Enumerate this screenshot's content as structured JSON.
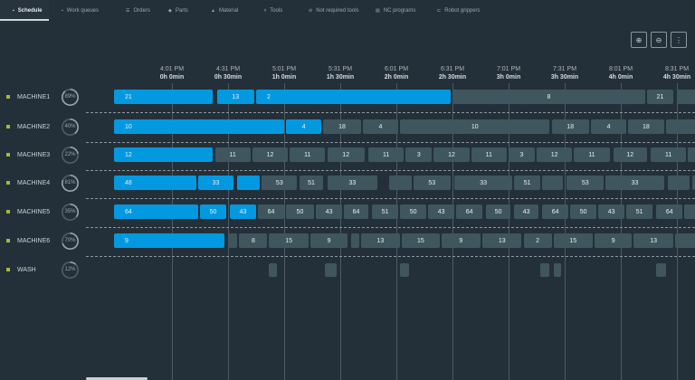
{
  "tabs": [
    {
      "label": "Schedule",
      "icon": "calendar-icon",
      "active": true
    },
    {
      "label": "Work queues",
      "icon": "queue-icon"
    },
    {
      "label": "Orders",
      "icon": "list-icon"
    },
    {
      "label": "Parts",
      "icon": "part-icon"
    },
    {
      "label": "Material",
      "icon": "material-icon"
    },
    {
      "label": "Tools",
      "icon": "tool-icon"
    },
    {
      "label": "Not required tools",
      "icon": "tool-off-icon"
    },
    {
      "label": "NC programs",
      "icon": "program-icon"
    },
    {
      "label": "Robot grippers",
      "icon": "gripper-icon"
    }
  ],
  "toolbar": {
    "zoom_in": "zoom-in-icon",
    "zoom_out": "zoom-out-icon",
    "more": "more-icon"
  },
  "colors": {
    "background": "#243039",
    "active_bar": "#0399e1",
    "queued_bar": "#40565e",
    "machine_dot": "#a8b83a"
  },
  "axis": {
    "ticks": [
      {
        "clock": "4:01 PM",
        "offset": "0h 0min",
        "min": 0
      },
      {
        "clock": "4:31 PM",
        "offset": "0h 30min",
        "min": 30
      },
      {
        "clock": "5:01 PM",
        "offset": "1h 0min",
        "min": 60
      },
      {
        "clock": "5:31 PM",
        "offset": "1h 30min",
        "min": 90
      },
      {
        "clock": "6:01 PM",
        "offset": "2h 0min",
        "min": 120
      },
      {
        "clock": "6:31 PM",
        "offset": "2h 30min",
        "min": 150
      },
      {
        "clock": "7:01 PM",
        "offset": "3h 0min",
        "min": 180
      },
      {
        "clock": "7:31 PM",
        "offset": "3h 30min",
        "min": 210
      },
      {
        "clock": "8:01 PM",
        "offset": "4h 0min",
        "min": 240
      },
      {
        "clock": "8:31 PM",
        "offset": "4h 30min",
        "min": 270
      }
    ]
  },
  "machines": [
    {
      "name": "MACHINE1",
      "utilization": "89%",
      "util": 89,
      "jobs": [
        [
          -31,
          22,
          "21",
          1
        ],
        [
          24,
          44,
          "13",
          1
        ],
        [
          45,
          149,
          "2",
          1
        ],
        [
          150,
          253,
          "8",
          0
        ],
        [
          254,
          268,
          "21",
          0
        ],
        [
          270,
          300,
          "",
          0
        ]
      ]
    },
    {
      "name": "MACHINE2",
      "utilization": "40%",
      "util": 40,
      "jobs": [
        [
          -31,
          60,
          "10",
          1
        ],
        [
          61,
          80,
          "4",
          1
        ],
        [
          81,
          101,
          "18",
          0
        ],
        [
          102,
          121,
          "4",
          0
        ],
        [
          122,
          202,
          "10",
          0
        ],
        [
          203,
          223,
          "18",
          0
        ],
        [
          224,
          243,
          "4",
          0
        ],
        [
          244,
          263,
          "18",
          0
        ],
        [
          264,
          300,
          "",
          0
        ]
      ]
    },
    {
      "name": "MACHINE3",
      "utilization": "22%",
      "util": 22,
      "jobs": [
        [
          -31,
          22,
          "12",
          1
        ],
        [
          23,
          42,
          "11",
          0
        ],
        [
          43,
          62,
          "12",
          0
        ],
        [
          63,
          82,
          "11",
          0
        ],
        [
          83,
          103,
          "12",
          0
        ],
        [
          105,
          124,
          "11",
          0
        ],
        [
          125,
          139,
          "3",
          0
        ],
        [
          140,
          159,
          "12",
          0
        ],
        [
          160,
          179,
          "11",
          0
        ],
        [
          180,
          194,
          "3",
          0
        ],
        [
          195,
          214,
          "12",
          0
        ],
        [
          215,
          234,
          "11",
          0
        ],
        [
          236,
          254,
          "12",
          0
        ],
        [
          256,
          275,
          "11",
          0
        ],
        [
          276,
          300,
          "",
          0
        ]
      ]
    },
    {
      "name": "MACHINE4",
      "utilization": "81%",
      "util": 81,
      "jobs": [
        [
          -31,
          13,
          "48",
          1
        ],
        [
          14,
          33,
          "33",
          1
        ],
        [
          35,
          47,
          "",
          1
        ],
        [
          48,
          67,
          "53",
          0
        ],
        [
          68,
          81,
          "51",
          0
        ],
        [
          83,
          110,
          "33",
          0
        ],
        [
          116,
          128,
          "",
          0
        ],
        [
          129,
          149,
          "53",
          0
        ],
        [
          151,
          182,
          "33",
          0
        ],
        [
          183,
          197,
          "51",
          0
        ],
        [
          198,
          209,
          "",
          0
        ],
        [
          211,
          231,
          "53",
          0
        ],
        [
          232,
          263,
          "33",
          0
        ],
        [
          265,
          277,
          "",
          0
        ],
        [
          278,
          300,
          "",
          0
        ]
      ]
    },
    {
      "name": "MACHINE5",
      "utilization": "35%",
      "util": 35,
      "jobs": [
        [
          -31,
          14,
          "64",
          1
        ],
        [
          15,
          29,
          "50",
          1
        ],
        [
          31,
          45,
          "43",
          1
        ],
        [
          46,
          60,
          "64",
          0
        ],
        [
          61,
          76,
          "50",
          0
        ],
        [
          77,
          91,
          "43",
          0
        ],
        [
          92,
          105,
          "64",
          0
        ],
        [
          107,
          121,
          "51",
          0
        ],
        [
          122,
          136,
          "50",
          0
        ],
        [
          137,
          151,
          "43",
          0
        ],
        [
          152,
          166,
          "64",
          0
        ],
        [
          168,
          181,
          "50",
          0
        ],
        [
          183,
          196,
          "43",
          0
        ],
        [
          198,
          212,
          "64",
          0
        ],
        [
          213,
          227,
          "50",
          0
        ],
        [
          228,
          242,
          "43",
          0
        ],
        [
          243,
          257,
          "51",
          0
        ],
        [
          259,
          273,
          "64",
          0
        ],
        [
          274,
          300,
          "",
          0
        ]
      ]
    },
    {
      "name": "MACHINE6",
      "utilization": "70%",
      "util": 70,
      "jobs": [
        [
          -31,
          28,
          "9",
          1
        ],
        [
          30,
          35,
          "",
          0
        ],
        [
          36,
          51,
          "8",
          0
        ],
        [
          52,
          73,
          "15",
          0
        ],
        [
          74,
          94,
          "9",
          0
        ],
        [
          96,
          100,
          "",
          0
        ],
        [
          101,
          122,
          "13",
          0
        ],
        [
          123,
          143,
          "15",
          0
        ],
        [
          144,
          165,
          "9",
          0
        ],
        [
          166,
          187,
          "13",
          0
        ],
        [
          188,
          203,
          "2",
          0
        ],
        [
          204,
          225,
          "15",
          0
        ],
        [
          226,
          246,
          "9",
          0
        ],
        [
          247,
          268,
          "13",
          0
        ],
        [
          269,
          300,
          "",
          0
        ]
      ]
    },
    {
      "name": "WASH",
      "utilization": "12%",
      "util": 12,
      "jobs": [
        [
          52,
          56,
          "",
          0
        ],
        [
          82,
          88,
          "",
          0
        ],
        [
          122,
          127,
          "",
          0
        ],
        [
          197,
          202,
          "",
          0
        ],
        [
          204,
          208,
          "",
          0
        ],
        [
          259,
          264,
          "",
          0
        ]
      ]
    }
  ]
}
